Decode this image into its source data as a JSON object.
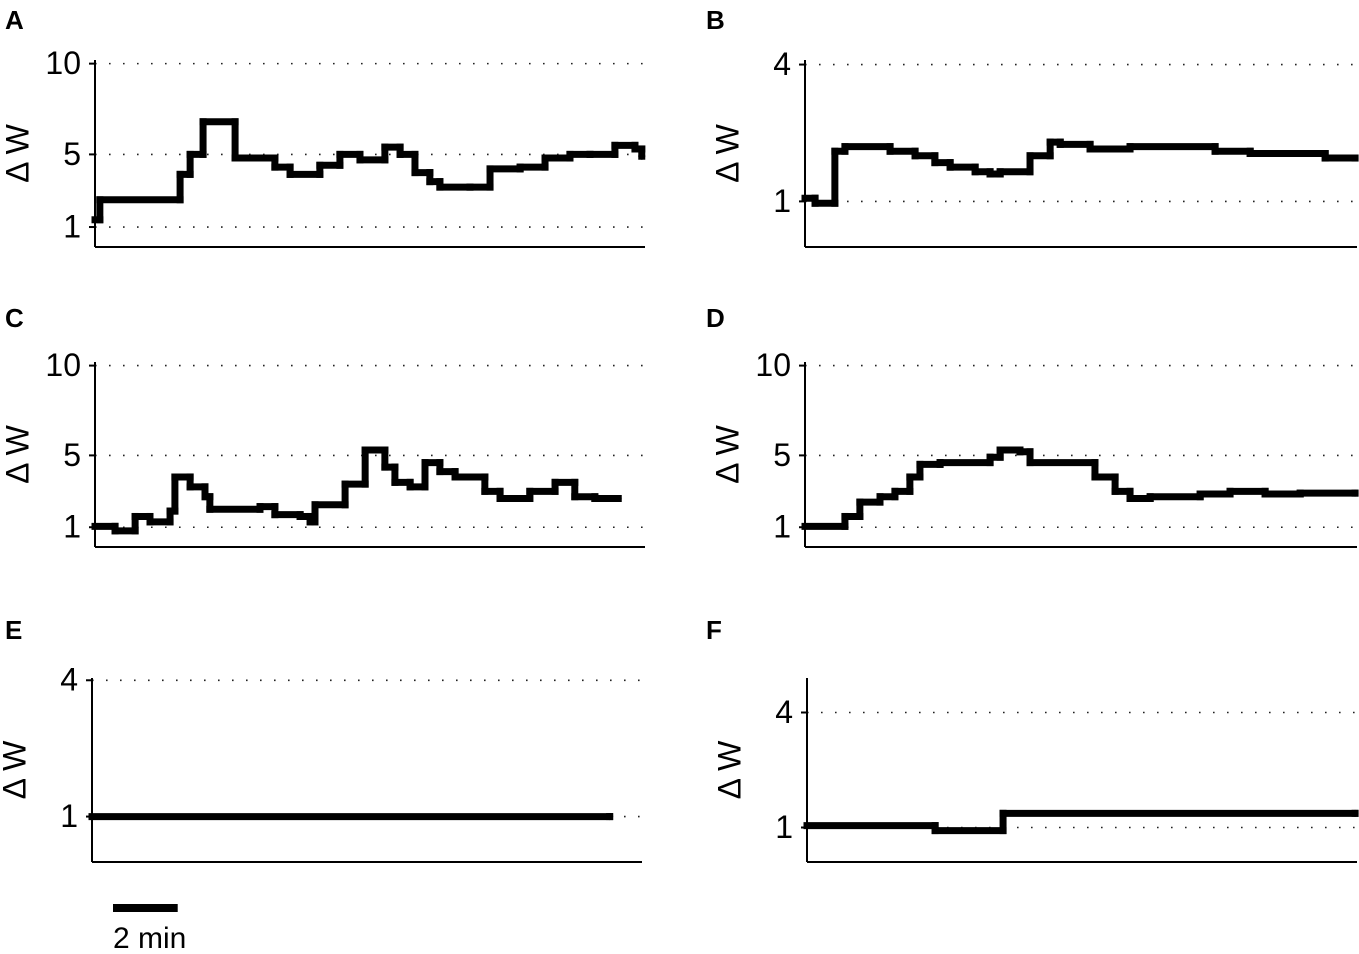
{
  "chart_data": [
    {
      "type": "step",
      "panel_label": "A",
      "ylabel": "Δ W",
      "ylim": [
        -0.1,
        10.2
      ],
      "yticks": [
        1,
        5,
        10
      ],
      "xlim": [
        0,
        17
      ],
      "grid": true,
      "series": [
        {
          "color": "#000000",
          "x": [
            0,
            0.15,
            2.63,
            2.94,
            3.34,
            4.33,
            5.56,
            6.03,
            6.95,
            7.57,
            8.19,
            8.96,
            9.43,
            9.89,
            10.35,
            10.66,
            11.59,
            12.21,
            13.14,
            13.91,
            14.68,
            15.3,
            16.07,
            16.69,
            16.9
          ],
          "values": [
            1.4,
            2.5,
            3.9,
            5,
            6.8,
            4.8,
            4.3,
            3.9,
            4.4,
            5,
            4.7,
            5.4,
            5,
            4,
            3.5,
            3.2,
            3.2,
            4.2,
            4.3,
            4.8,
            5,
            5,
            5.5,
            5.3,
            4.9
          ]
        }
      ]
    },
    {
      "type": "step",
      "panel_label": "B",
      "ylabel": "Δ W",
      "ylim": [
        0,
        4.1
      ],
      "yticks": [
        1,
        4
      ],
      "xlim": [
        0,
        17
      ],
      "grid": true,
      "series": [
        {
          "color": "#000000",
          "x": [
            0,
            0.31,
            0.92,
            1.23,
            2.62,
            3.39,
            4.0,
            4.47,
            5.24,
            5.7,
            6.01,
            6.93,
            7.55,
            7.86,
            8.78,
            10.01,
            12.63,
            13.71,
            16.02,
            16.94
          ],
          "values": [
            1.07,
            0.96,
            2.1,
            2.2,
            2.1,
            2.0,
            1.85,
            1.75,
            1.65,
            1.6,
            1.65,
            2.0,
            2.3,
            2.25,
            2.15,
            2.2,
            2.1,
            2.05,
            1.95,
            1.95
          ]
        }
      ]
    },
    {
      "type": "step",
      "panel_label": "C",
      "ylabel": "Δ W",
      "ylim": [
        -0.1,
        10.2
      ],
      "yticks": [
        1,
        5,
        10
      ],
      "xlim": [
        0,
        17
      ],
      "grid": true,
      "series": [
        {
          "color": "#000000",
          "x": [
            0,
            0.62,
            1.24,
            1.7,
            2.32,
            2.47,
            2.94,
            3.4,
            3.55,
            5.1,
            5.56,
            6.34,
            6.65,
            6.8,
            7.73,
            8.35,
            8.96,
            9.27,
            9.74,
            10.2,
            10.66,
            11.13,
            12.05,
            12.52,
            13.44,
            14.22,
            14.83,
            15.45,
            16.17
          ],
          "values": [
            1.05,
            0.8,
            1.6,
            1.3,
            1.9,
            3.8,
            3.25,
            2.7,
            2.0,
            2.15,
            1.7,
            1.6,
            1.3,
            2.25,
            3.4,
            5.3,
            4.35,
            3.5,
            3.25,
            4.6,
            4.1,
            3.8,
            3.0,
            2.6,
            3.0,
            3.5,
            2.7,
            2.6,
            2.6
          ]
        }
      ]
    },
    {
      "type": "step",
      "panel_label": "D",
      "ylabel": "Δ W",
      "ylim": [
        -0.1,
        10.2
      ],
      "yticks": [
        1,
        5,
        10
      ],
      "xlim": [
        0,
        17
      ],
      "grid": true,
      "series": [
        {
          "color": "#000000",
          "x": [
            0,
            1.23,
            1.69,
            2.31,
            2.77,
            3.23,
            3.54,
            4.16,
            5.7,
            6.01,
            6.62,
            6.93,
            8.93,
            9.55,
            10.01,
            10.63,
            12.17,
            13.09,
            14.17,
            15.25,
            16.94
          ],
          "values": [
            1.05,
            1.6,
            2.4,
            2.7,
            3.0,
            3.8,
            4.5,
            4.6,
            4.9,
            5.3,
            5.2,
            4.6,
            3.8,
            3.0,
            2.6,
            2.7,
            2.85,
            3.0,
            2.85,
            2.9,
            2.9
          ]
        }
      ]
    },
    {
      "type": "step",
      "panel_label": "E",
      "ylabel": "Δ W",
      "ylim": [
        0,
        4.05
      ],
      "yticks": [
        1,
        4
      ],
      "xlim": [
        0,
        17
      ],
      "grid": true,
      "series": [
        {
          "color": "#000000",
          "x": [
            0,
            16
          ],
          "values": [
            1,
            1
          ]
        }
      ],
      "scale_bar": {
        "value": 2,
        "label": "2 min"
      }
    },
    {
      "type": "step",
      "panel_label": "F",
      "ylabel": "Δ W",
      "ylim": [
        0.1,
        4.9
      ],
      "yticks": [
        1,
        4
      ],
      "xlim": [
        0,
        17
      ],
      "grid": true,
      "series": [
        {
          "color": "#000000",
          "x": [
            0,
            3.96,
            6.06,
            16.94
          ],
          "values": [
            1.05,
            0.92,
            1.37,
            1.37
          ]
        }
      ]
    }
  ]
}
